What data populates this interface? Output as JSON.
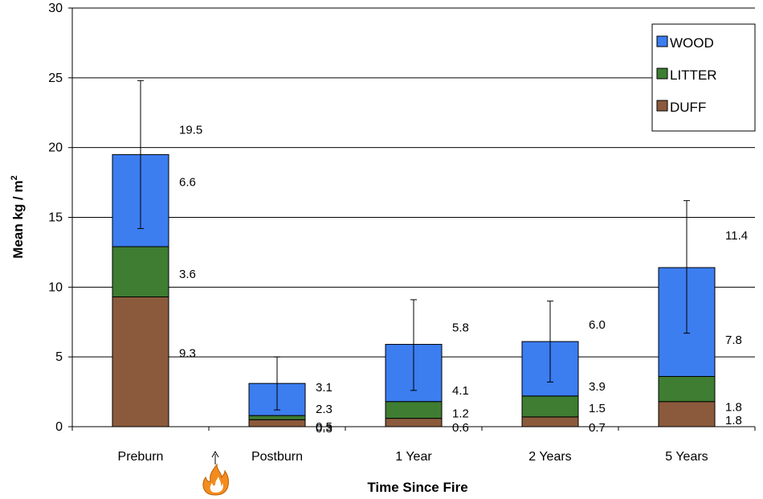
{
  "chart_data": {
    "type": "bar",
    "stacked": true,
    "categories": [
      "Preburn",
      "Postburn",
      "1 Year",
      "2 Years",
      "5 Years"
    ],
    "series": [
      {
        "name": "DUFF",
        "color": "#8B5A3C",
        "values": [
          9.3,
          0.5,
          0.6,
          0.7,
          1.8
        ]
      },
      {
        "name": "LITTER",
        "color": "#3E7D32",
        "values": [
          3.6,
          0.3,
          1.2,
          1.5,
          1.8
        ]
      },
      {
        "name": "WOOD",
        "color": "#3C7DF0",
        "values": [
          6.6,
          2.3,
          4.1,
          3.9,
          7.8
        ]
      }
    ],
    "totals": [
      19.5,
      3.1,
      5.8,
      6.0,
      11.4
    ],
    "error_bars": [
      {
        "low": 14.2,
        "high": 24.8
      },
      {
        "low": 1.2,
        "high": 5.0
      },
      {
        "low": 2.6,
        "high": 9.1
      },
      {
        "low": 3.2,
        "high": 9.0
      },
      {
        "low": 6.7,
        "high": 16.2
      }
    ],
    "total_labels": [
      "19.5",
      "3.1",
      "5.8",
      "6.0",
      "11.4"
    ],
    "segment_labels": {
      "WOOD": [
        "6.6",
        "2.3",
        "4.1",
        "3.9",
        "7.8"
      ],
      "LITTER": [
        "3.6",
        "0.3",
        "1.2",
        "1.5",
        "1.8"
      ],
      "DUFF": [
        "9.3",
        "0.5",
        "0.6",
        "0.7",
        "1.8"
      ]
    },
    "xlabel": "Time Since Fire",
    "ylabel_main": "Mean kg / m",
    "ylabel_sup": "2",
    "ylim": [
      0,
      30
    ],
    "yticks": [
      0,
      5,
      10,
      15,
      20,
      25,
      30
    ],
    "grid": true,
    "legend": {
      "position": "top-right",
      "order": [
        "WOOD",
        "LITTER",
        "DUFF"
      ]
    },
    "annotation_icon": "fire-icon"
  }
}
